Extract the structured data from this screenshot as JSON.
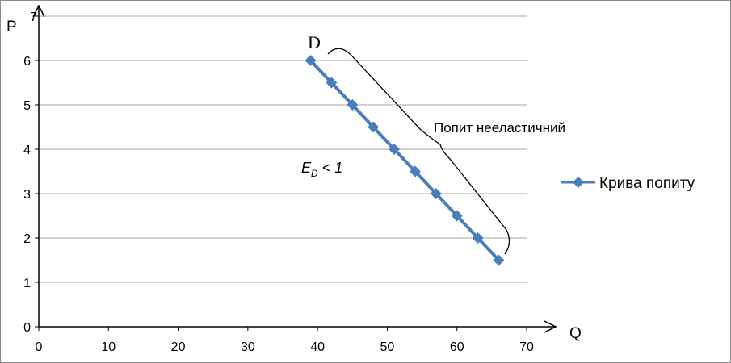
{
  "chart_data": {
    "type": "line",
    "xlabel": "Q",
    "ylabel": "P",
    "xlim": [
      0,
      70
    ],
    "ylim": [
      0,
      7
    ],
    "x_ticks": [
      0,
      10,
      20,
      30,
      40,
      50,
      60,
      70
    ],
    "y_ticks": [
      0,
      1,
      2,
      3,
      4,
      5,
      6,
      7
    ],
    "grid": "horizontal",
    "legend_position": "right",
    "series": [
      {
        "name": "Крива попиту",
        "color": "#4a7ebb",
        "marker": "diamond",
        "x": [
          39,
          42,
          45,
          48,
          51,
          54,
          57,
          60,
          63,
          66
        ],
        "y": [
          6,
          5.5,
          5,
          4.5,
          4,
          3.5,
          3,
          2.5,
          2,
          1.5
        ]
      }
    ],
    "annotations": {
      "curve_label": "D",
      "bracket_text": "Попит нееластичний",
      "elasticity_main": "E",
      "elasticity_sub": "D",
      "elasticity_rel": " < 1"
    }
  }
}
